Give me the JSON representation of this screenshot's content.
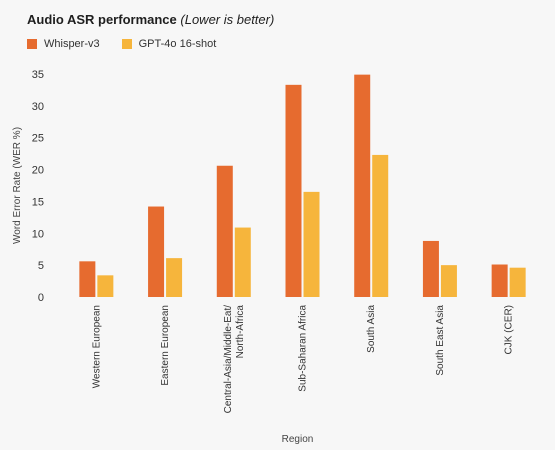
{
  "chart_data": {
    "type": "bar",
    "title": "Audio ASR performance",
    "subtitle": "(Lower is better)",
    "xlabel": "Region",
    "ylabel": "Word Error Rate (WER %)",
    "ylim": [
      0,
      35
    ],
    "yticks": [
      "0",
      "5",
      "10",
      "15",
      "20",
      "25",
      "30",
      "35"
    ],
    "grid": false,
    "legend_position": "top-left",
    "categories": [
      "Western European",
      "Eastern European",
      "Central-Asia/Middle-Eat/ North-Africa",
      "Sub-Saharan Africa",
      "South Asia",
      "South East Asia",
      "CJK (CER)"
    ],
    "series": [
      {
        "name": "Whisper-v3",
        "color": "#e66b2f",
        "values": [
          5.6,
          14.2,
          20.6,
          33.3,
          34.9,
          8.8,
          5.1
        ]
      },
      {
        "name": "GPT-4o 16-shot",
        "color": "#f6b53c",
        "values": [
          3.4,
          6.1,
          10.9,
          16.5,
          22.3,
          5.0,
          4.6
        ]
      }
    ]
  }
}
